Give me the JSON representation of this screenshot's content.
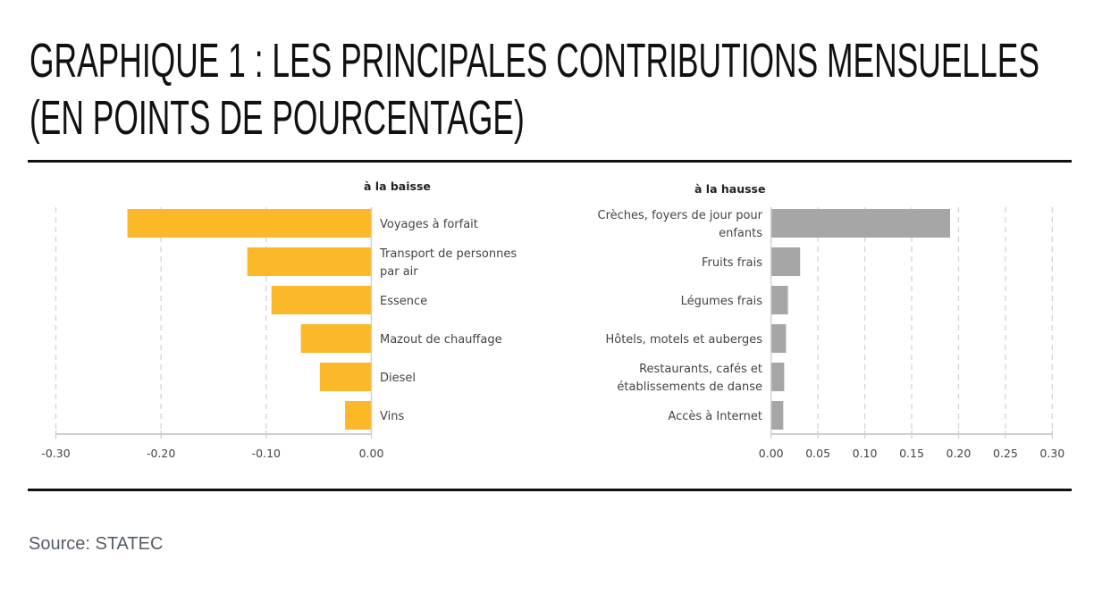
{
  "header": {
    "title_line1": "GRAPHIQUE 1 : LES PRINCIPALES CONTRIBUTIONS MENSUELLES",
    "title_line2": "(EN POINTS DE POURCENTAGE)"
  },
  "footer": {
    "source": "Source: STATEC"
  },
  "colors": {
    "decrease": "#FBB829",
    "increase": "#A6A6A6",
    "grid": "#D4D4D4",
    "axis": "#CFCFCF"
  },
  "chart_data": [
    {
      "type": "bar",
      "orientation": "horizontal",
      "title": "à la baisse",
      "xlabel": "",
      "ylabel": "",
      "xlim": [
        -0.3,
        0.0
      ],
      "xticks": [
        -0.3,
        -0.2,
        -0.1,
        0.0
      ],
      "xtick_labels": [
        "-0.30",
        "-0.20",
        "-0.10",
        "0.00"
      ],
      "grid": true,
      "categories": [
        [
          "Voyages à forfait"
        ],
        [
          "Transport de personnes",
          "par air"
        ],
        [
          "Essence"
        ],
        [
          "Mazout de chauffage"
        ],
        [
          "Diesel"
        ],
        [
          "Vins"
        ]
      ],
      "values": [
        -0.232,
        -0.118,
        -0.095,
        -0.067,
        -0.049,
        -0.025
      ],
      "color": "#FBB829",
      "label_side": "right"
    },
    {
      "type": "bar",
      "orientation": "horizontal",
      "title": "à la hausse",
      "xlabel": "",
      "ylabel": "",
      "xlim": [
        0.0,
        0.3
      ],
      "xticks": [
        0.0,
        0.05,
        0.1,
        0.15,
        0.2,
        0.25,
        0.3
      ],
      "xtick_labels": [
        "0.00",
        "0.05",
        "0.10",
        "0.15",
        "0.20",
        "0.25",
        "0.30"
      ],
      "grid": true,
      "categories": [
        [
          "Crèches, foyers de jour pour",
          "enfants"
        ],
        [
          "Fruits frais"
        ],
        [
          "Légumes frais"
        ],
        [
          "Hôtels, motels et auberges"
        ],
        [
          "Restaurants, cafés et",
          "établissements de danse"
        ],
        [
          "Accès à Internet"
        ]
      ],
      "values": [
        0.191,
        0.031,
        0.018,
        0.016,
        0.014,
        0.013
      ],
      "color": "#A6A6A6",
      "label_side": "left"
    }
  ]
}
